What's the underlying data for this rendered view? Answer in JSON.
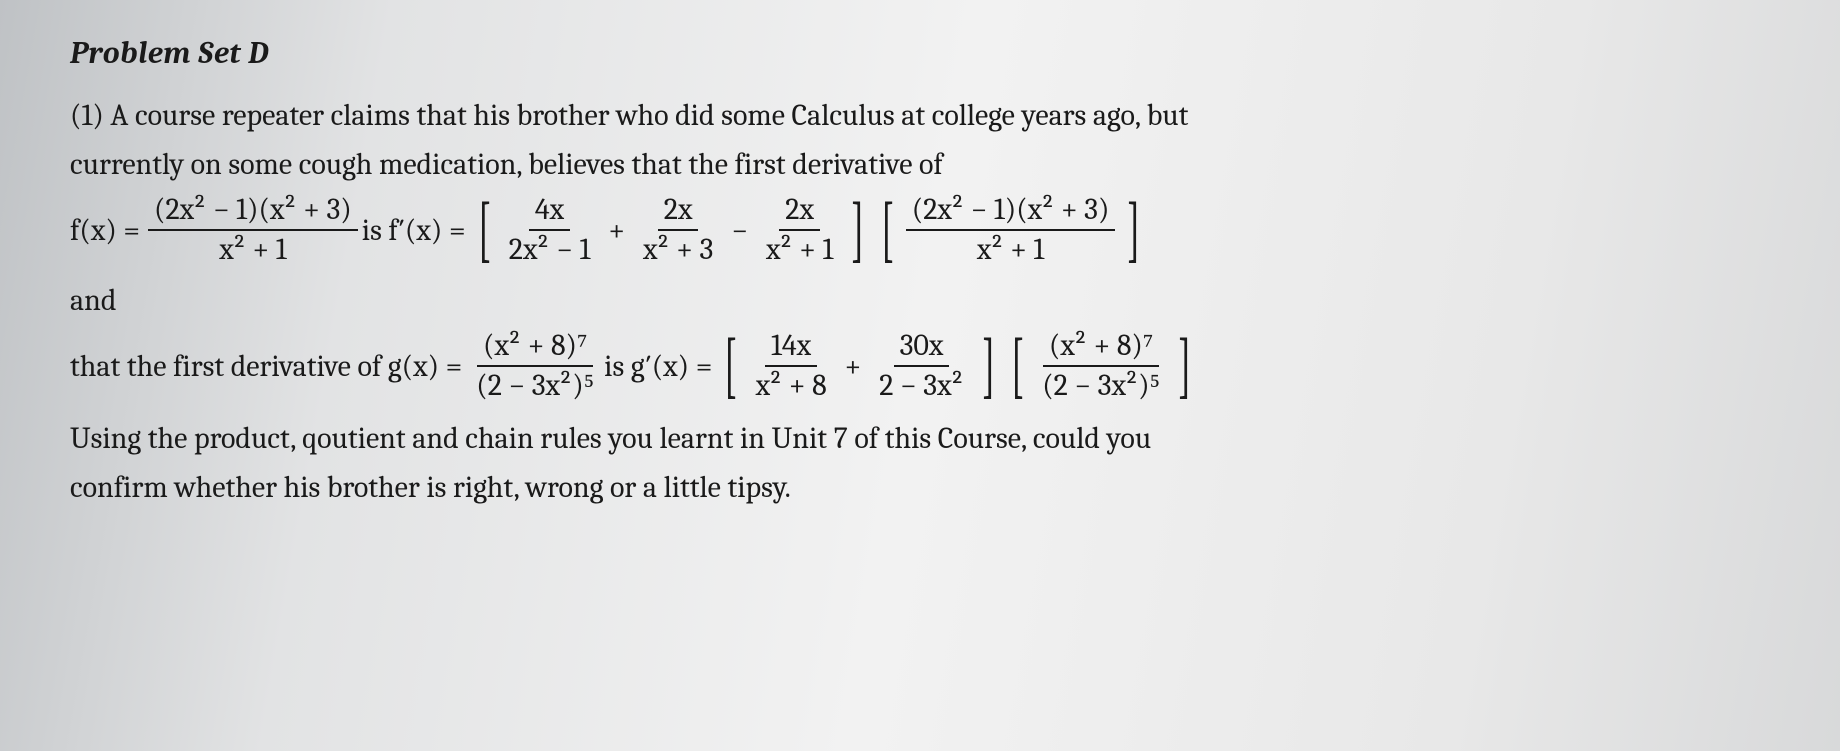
{
  "title": "Problem Set D",
  "intro_line1": "(1)  A course repeater claims  that his brother who did some Calculus at college years ago,   but",
  "intro_line2": "currently on some cough medication, believes that the first derivative of",
  "f": {
    "lhs_pre": "f(x) = ",
    "lhs_num": "(2x² − 1)(x² + 3)",
    "lhs_den": "x² + 1",
    "mid_text": " is f′(x) = ",
    "t1_num": "4x",
    "t1_den": "2x² − 1",
    "t2_num": "2x",
    "t2_den": "x² + 3",
    "t3_num": "2x",
    "t3_den": "x² + 1",
    "t4_num": "(2x² − 1)(x² + 3)",
    "t4_den": "x² + 1"
  },
  "and_text": "and",
  "g": {
    "lead": "that the first derivative of  g(x) = ",
    "lhs_num": "(x² + 8)⁷",
    "lhs_den": "(2 − 3x²)⁵",
    "mid_text": " is g′(x) = ",
    "t1_num": "14x",
    "t1_den": "x² + 8",
    "t2_num": "30x",
    "t2_den": "2 − 3x²",
    "t3_num": "(x² + 8)⁷",
    "t3_den": "(2 − 3x²)⁵"
  },
  "closing_line1": "Using the product, qoutient and chain rules you learnt in  Unit 7 of this Course, could you",
  "closing_line2": "confirm whether his brother is right, wrong or a little tipsy."
}
